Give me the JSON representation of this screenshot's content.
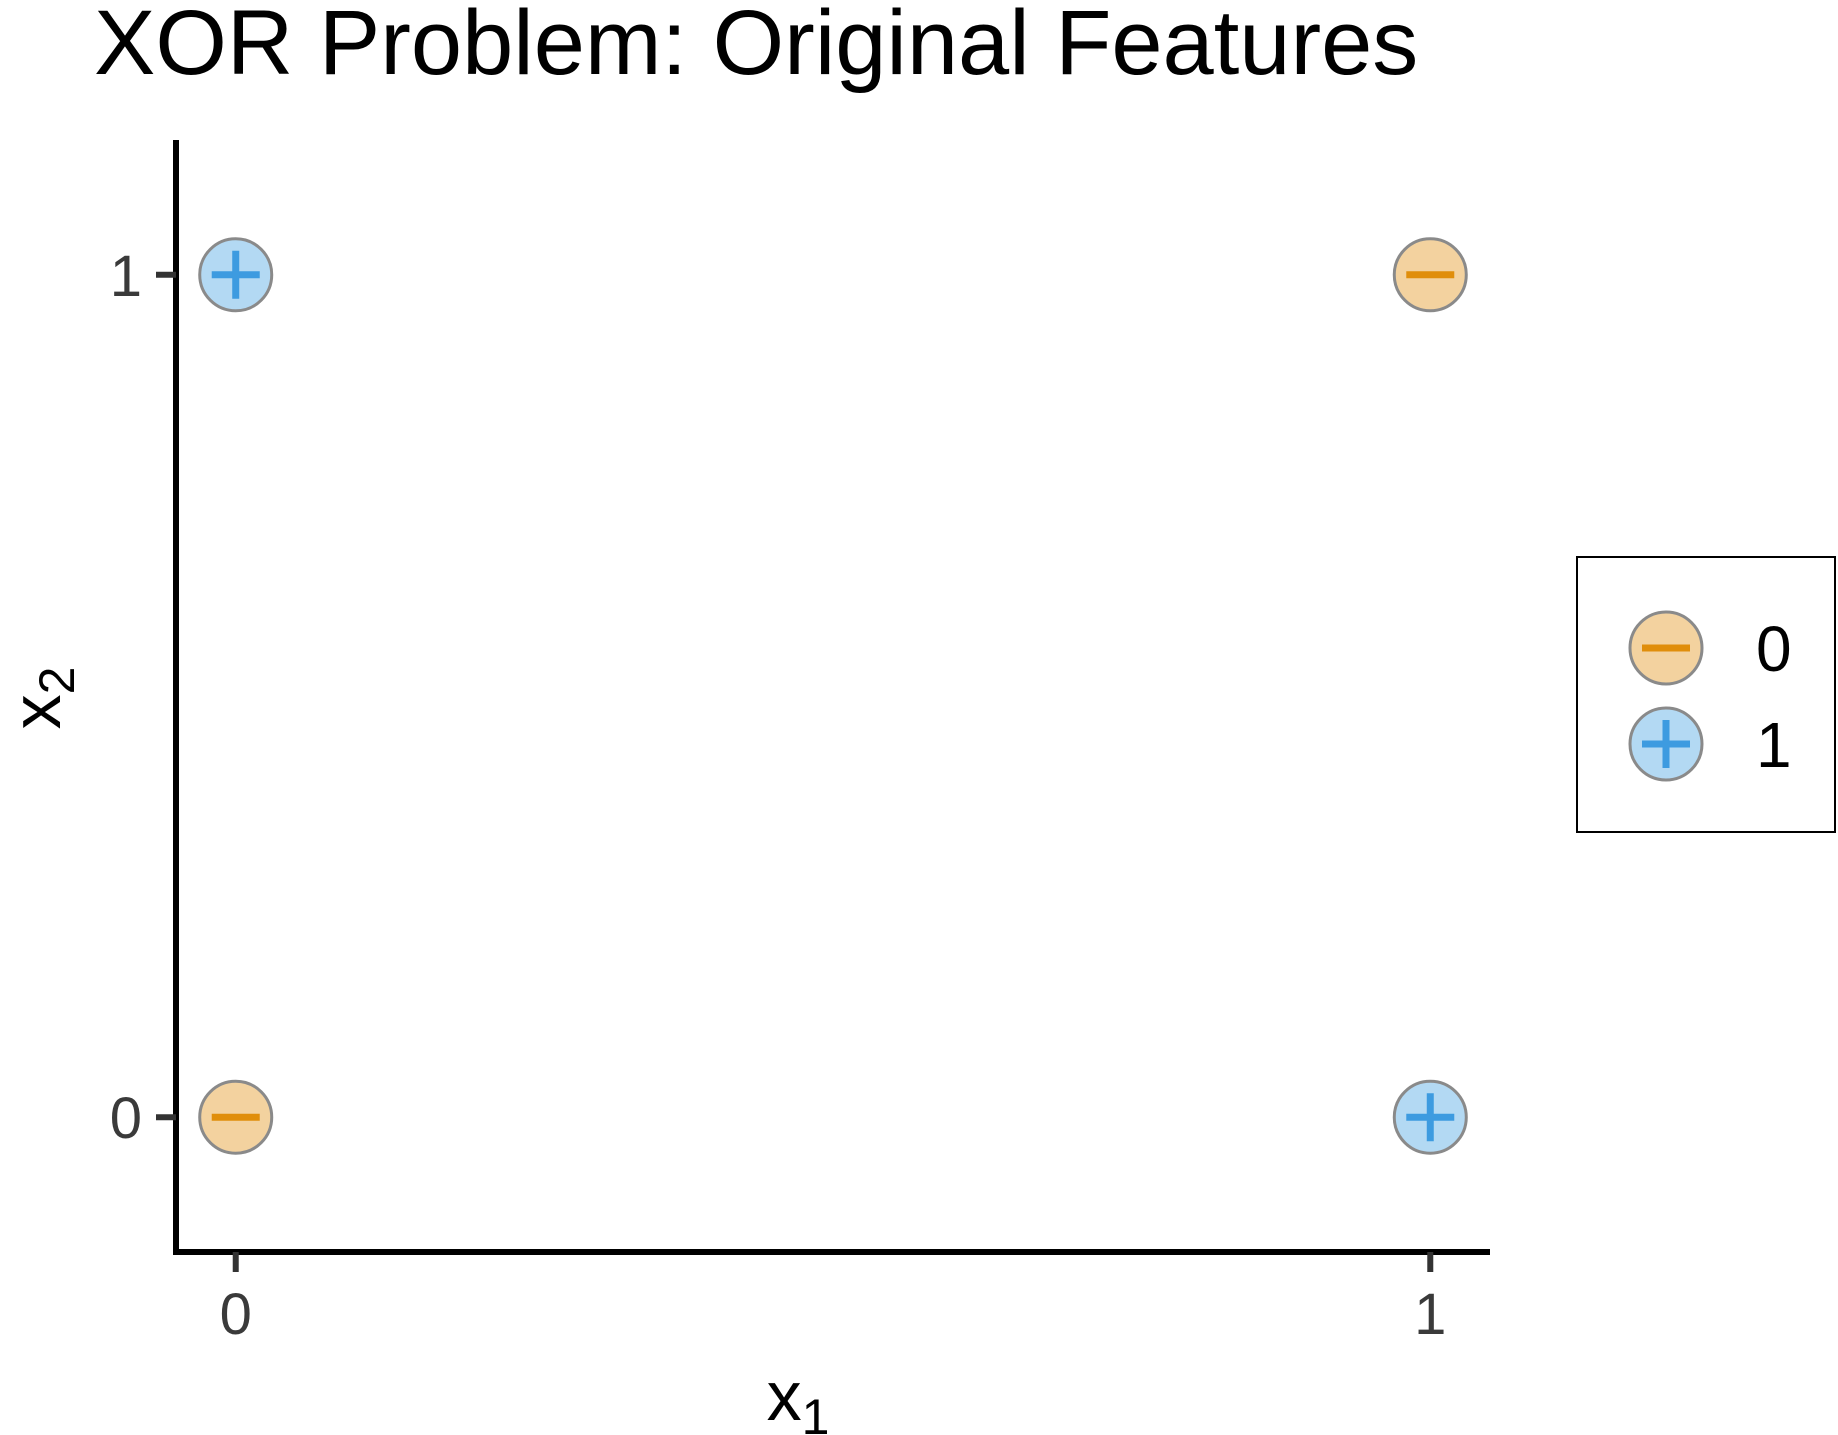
{
  "chart_data": {
    "type": "scatter",
    "title": "XOR Problem: Original Features",
    "xlabel": "x",
    "xlabel_sub": "1",
    "ylabel": "x",
    "ylabel_sub": "2",
    "xlim": [
      -0.05,
      1.05
    ],
    "ylim": [
      -0.16,
      1.16
    ],
    "x_ticks": [
      0,
      1
    ],
    "y_ticks": [
      0,
      1
    ],
    "grid": false,
    "legend_placement": "right",
    "series": [
      {
        "name": "0",
        "marker": "minus",
        "fill": "#f3d29f",
        "stroke": "#e08e0b",
        "points": [
          {
            "x": 0,
            "y": 0
          },
          {
            "x": 1,
            "y": 1
          }
        ]
      },
      {
        "name": "1",
        "marker": "plus",
        "fill": "#b3d9f3",
        "stroke": "#3d9be0",
        "points": [
          {
            "x": 0,
            "y": 1
          },
          {
            "x": 1,
            "y": 0
          }
        ]
      }
    ]
  }
}
